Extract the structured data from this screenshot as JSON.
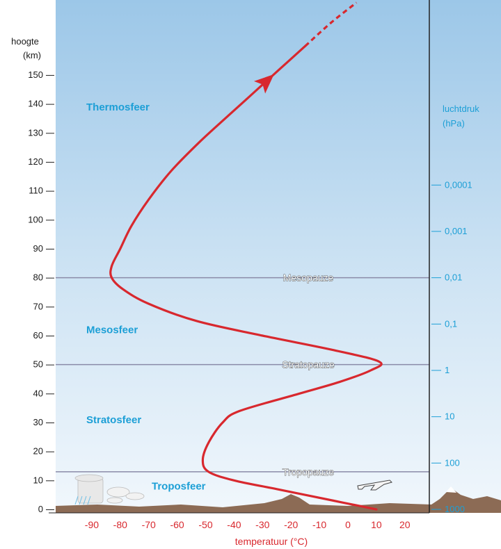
{
  "left_axis": {
    "title_line1": "hoogte",
    "title_line2": "(km)",
    "ticks": [
      0,
      10,
      20,
      30,
      40,
      50,
      60,
      70,
      80,
      90,
      100,
      110,
      120,
      130,
      140,
      150
    ]
  },
  "bottom_axis": {
    "title": "temperatuur (°C)",
    "ticks": [
      -90,
      -80,
      -70,
      -60,
      -50,
      -40,
      -30,
      -20,
      -10,
      0,
      10,
      20
    ]
  },
  "right_axis": {
    "title_line1": "luchtdruk",
    "title_line2": "(hPa)",
    "labels": [
      {
        "text": "1000",
        "height_km": 0
      },
      {
        "text": "100",
        "height_km": 16
      },
      {
        "text": "10",
        "height_km": 32
      },
      {
        "text": "1",
        "height_km": 48
      },
      {
        "text": "0,1",
        "height_km": 64
      },
      {
        "text": "0,01",
        "height_km": 80
      },
      {
        "text": "0,001",
        "height_km": 96
      },
      {
        "text": "0,0001",
        "height_km": 112
      }
    ]
  },
  "layers": [
    {
      "name": "Thermosfeer",
      "height_km": 139
    },
    {
      "name": "Mesosfeer",
      "height_km": 62
    },
    {
      "name": "Stratosfeer",
      "height_km": 31
    },
    {
      "name": "Troposfeer",
      "height_km": 8
    }
  ],
  "pauses": [
    {
      "name": "Mesopauze",
      "height_km": 80
    },
    {
      "name": "Stratopauze",
      "height_km": 50
    },
    {
      "name": "Tropopauze",
      "height_km": 13
    }
  ],
  "colors": {
    "curve": "#d8282e",
    "layer_text": "#1c9fd6",
    "pause_line": "#8a8aa8",
    "ground": "#8c6b55"
  },
  "chart_data": {
    "type": "line",
    "x_label": "temperatuur (°C)",
    "y_label": "hoogte (km)",
    "xlim": [
      -100,
      28
    ],
    "ylim": [
      0,
      175
    ],
    "series": [
      {
        "points": [
          [
            10,
            0
          ],
          [
            -5,
            3
          ],
          [
            -25,
            7
          ],
          [
            -40,
            10
          ],
          [
            -49,
            13
          ],
          [
            -51,
            17
          ],
          [
            -49,
            23
          ],
          [
            -44,
            30
          ],
          [
            -38,
            34
          ],
          [
            -17,
            40
          ],
          [
            -3,
            44
          ],
          [
            8,
            48
          ],
          [
            11,
            51
          ],
          [
            -5,
            55
          ],
          [
            -30,
            60
          ],
          [
            -53,
            65
          ],
          [
            -70,
            71
          ],
          [
            -79,
            76
          ],
          [
            -83,
            80
          ],
          [
            -83,
            84
          ],
          [
            -80,
            90
          ],
          [
            -76,
            98
          ],
          [
            -70,
            107
          ],
          [
            -62,
            117
          ],
          [
            -52,
            127
          ],
          [
            -42,
            136
          ],
          [
            -33,
            144
          ],
          [
            -24,
            152
          ],
          [
            -15,
            160
          ],
          [
            -6,
            168
          ],
          [
            3,
            175
          ]
        ],
        "dashed_from_height_km": 160,
        "arrow_at_height_km": 145
      }
    ]
  }
}
